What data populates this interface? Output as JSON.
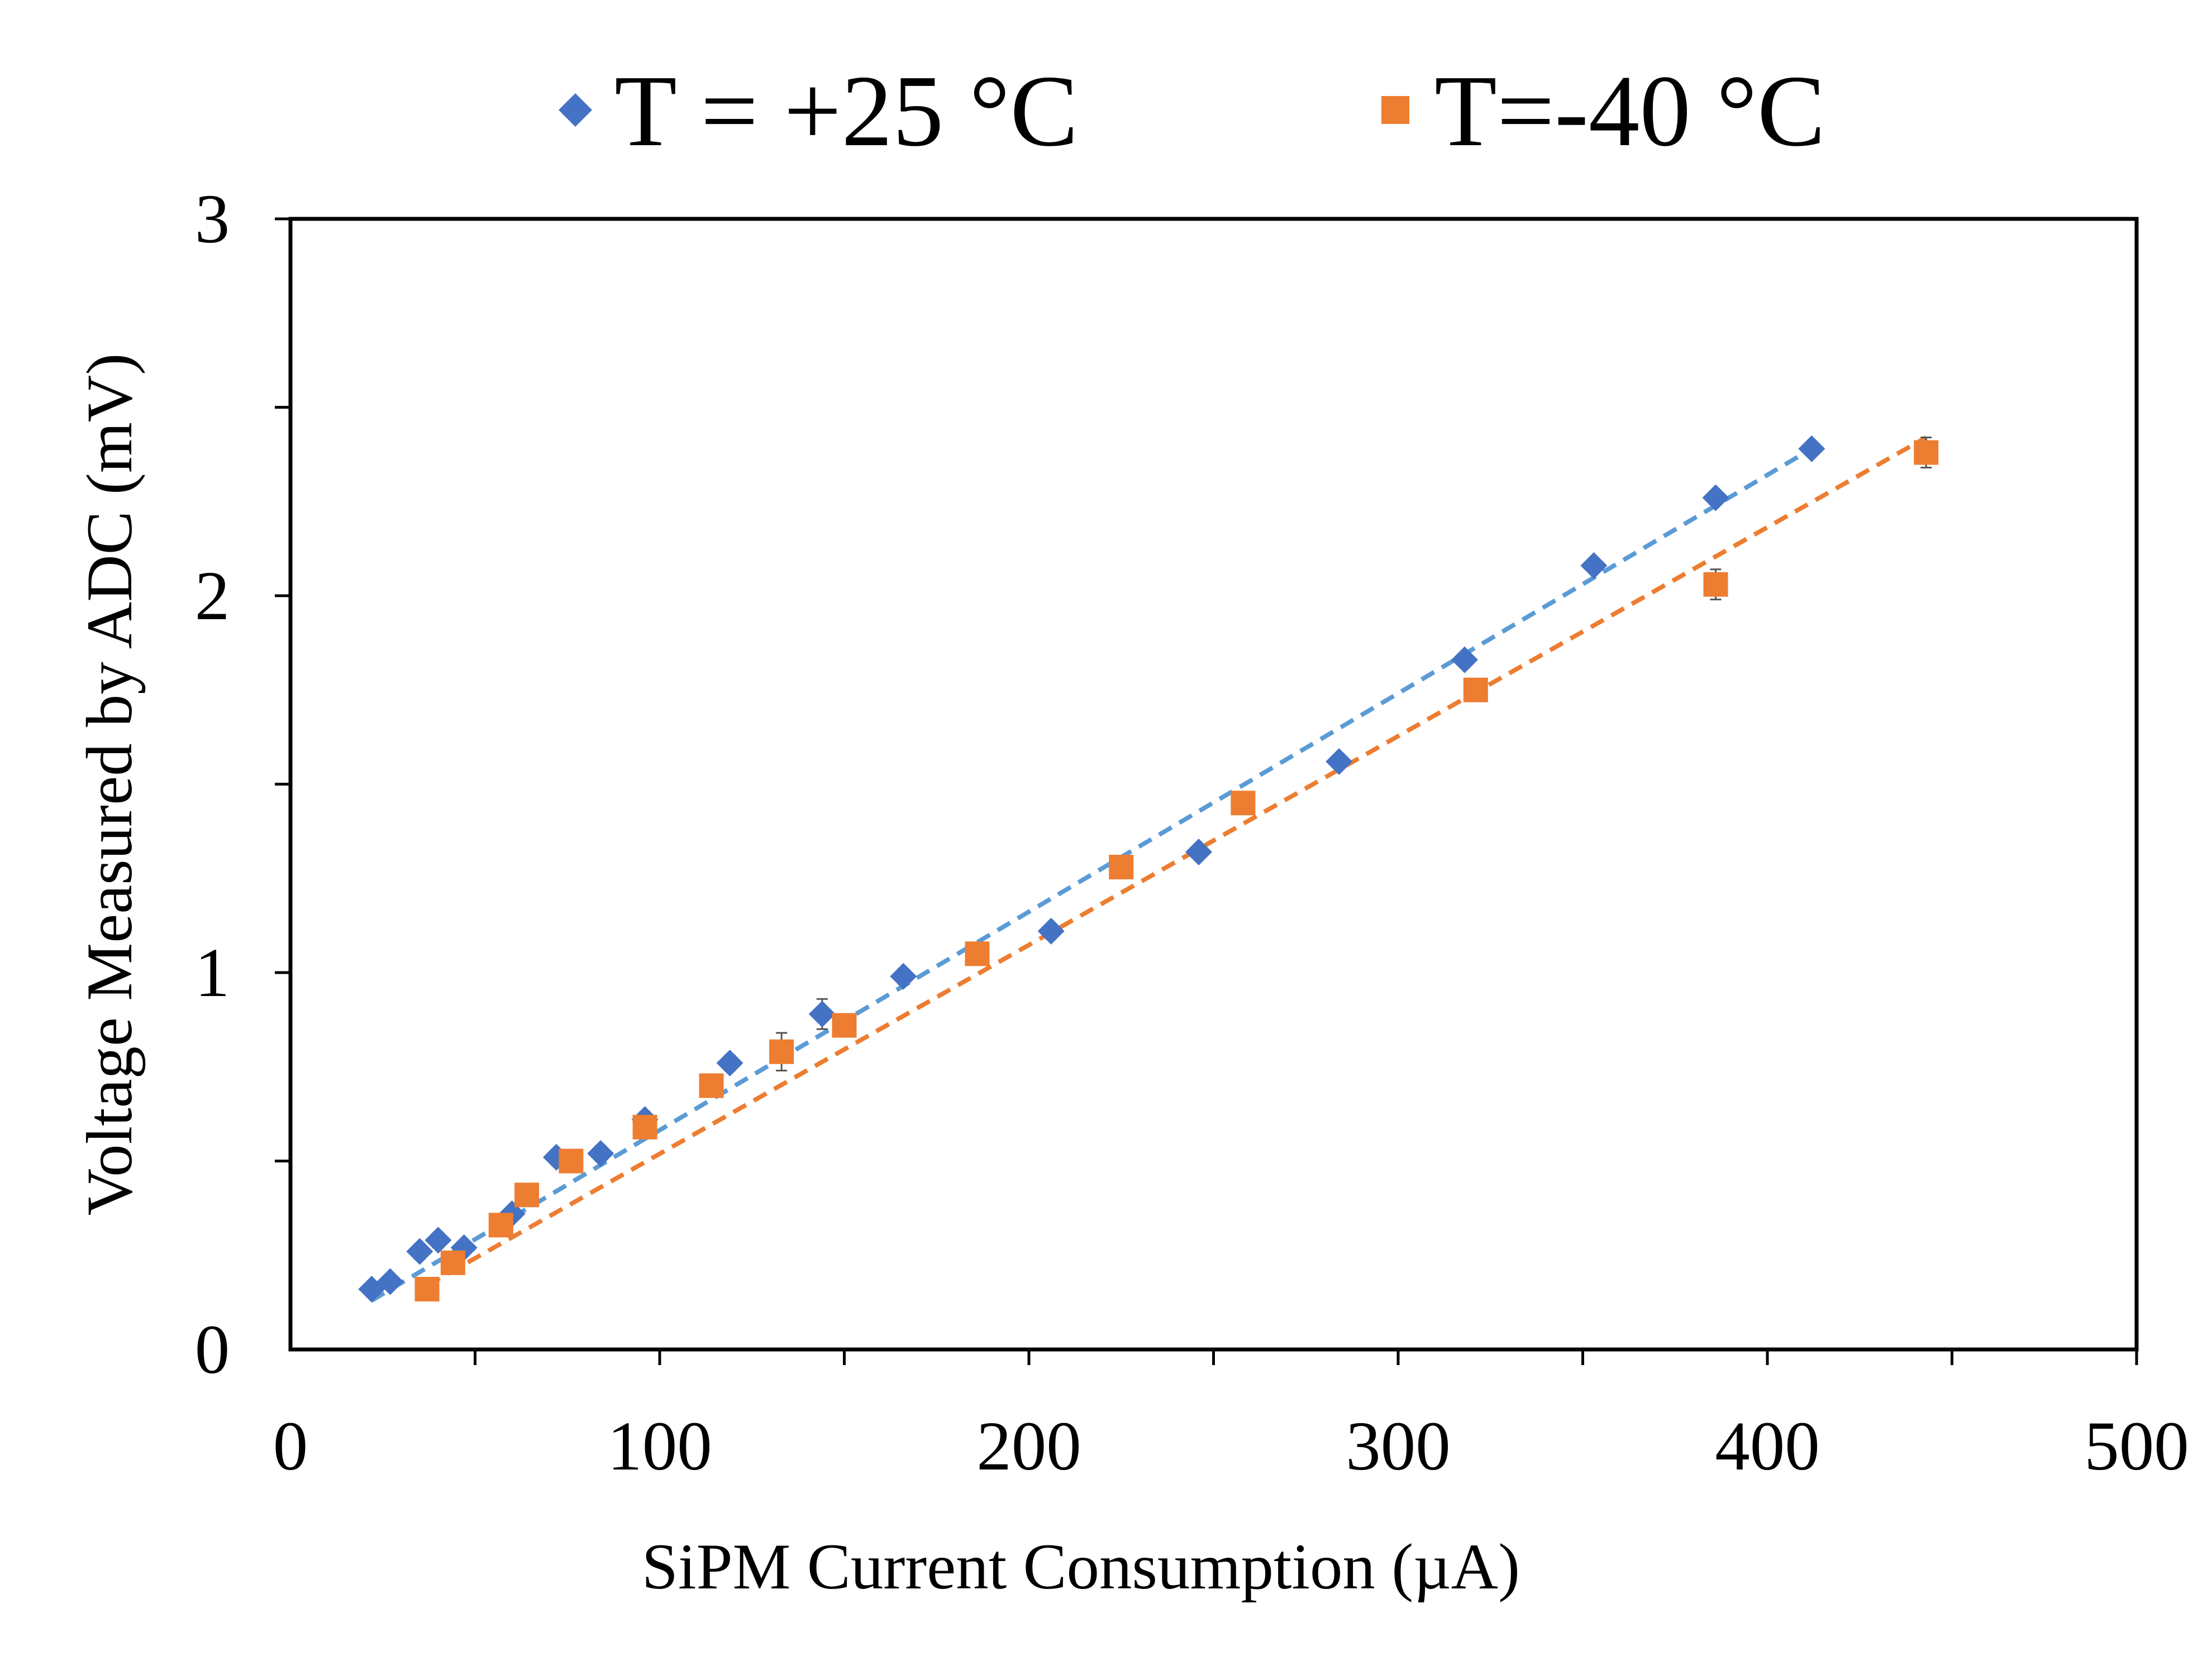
{
  "chart_data": {
    "type": "scatter",
    "title": "",
    "xlabel": "SiPM Current Consumption (µA)",
    "ylabel": "Voltage Measured by ADC (mV)",
    "xlim": [
      0,
      500
    ],
    "ylim": [
      0,
      3
    ],
    "x_ticks": [
      0,
      100,
      200,
      300,
      400,
      500
    ],
    "y_ticks": [
      0,
      1,
      2,
      3
    ],
    "y_minor_ticks": [
      0.5,
      1.5,
      2.5
    ],
    "x_minor_ticks": [
      50,
      150,
      250,
      350,
      450
    ],
    "grid": false,
    "legend_position": "top",
    "series": [
      {
        "name": "T = +25 °C",
        "marker": "diamond",
        "color": "#4472C4",
        "trend_color": "#5B9BD5",
        "trendline": "linear-dashed",
        "points": [
          {
            "x": 22,
            "y": 0.16,
            "err": 0.01
          },
          {
            "x": 27,
            "y": 0.18,
            "err": 0.01
          },
          {
            "x": 35,
            "y": 0.26,
            "err": 0.02
          },
          {
            "x": 40,
            "y": 0.29,
            "err": 0.02
          },
          {
            "x": 47,
            "y": 0.27,
            "err": 0.01
          },
          {
            "x": 60,
            "y": 0.36,
            "err": 0.01
          },
          {
            "x": 72,
            "y": 0.51,
            "err": 0.02
          },
          {
            "x": 84,
            "y": 0.52,
            "err": 0.02
          },
          {
            "x": 96,
            "y": 0.61,
            "err": 0.02
          },
          {
            "x": 119,
            "y": 0.76,
            "err": 0.02
          },
          {
            "x": 144,
            "y": 0.89,
            "err": 0.04
          },
          {
            "x": 166,
            "y": 0.99,
            "err": 0.02
          },
          {
            "x": 206,
            "y": 1.11,
            "err": 0.01
          },
          {
            "x": 246,
            "y": 1.32,
            "err": 0.01
          },
          {
            "x": 284,
            "y": 1.56,
            "err": 0.01
          },
          {
            "x": 318,
            "y": 1.83,
            "err": 0.01
          },
          {
            "x": 353,
            "y": 2.08,
            "err": 0.01
          },
          {
            "x": 386,
            "y": 2.26,
            "err": 0.01
          },
          {
            "x": 412,
            "y": 2.39,
            "err": 0.01
          }
        ],
        "trend_range": [
          22,
          412
        ],
        "trend_y": [
          0.13,
          2.39
        ]
      },
      {
        "name": "T=-40 °C",
        "marker": "square",
        "color": "#ED7D31",
        "trend_color": "#ED7D31",
        "trendline": "linear-dashed",
        "points": [
          {
            "x": 37,
            "y": 0.16,
            "err": 0.01
          },
          {
            "x": 44,
            "y": 0.23,
            "err": 0.01
          },
          {
            "x": 57,
            "y": 0.33,
            "err": 0.01
          },
          {
            "x": 64,
            "y": 0.41,
            "err": 0.01
          },
          {
            "x": 76,
            "y": 0.5,
            "err": 0.01
          },
          {
            "x": 96,
            "y": 0.59,
            "err": 0.01
          },
          {
            "x": 114,
            "y": 0.7,
            "err": 0.01
          },
          {
            "x": 133,
            "y": 0.79,
            "err": 0.05
          },
          {
            "x": 150,
            "y": 0.86,
            "err": 0.02
          },
          {
            "x": 186,
            "y": 1.05,
            "err": 0.01
          },
          {
            "x": 225,
            "y": 1.28,
            "err": 0.02
          },
          {
            "x": 258,
            "y": 1.45,
            "err": 0.03
          },
          {
            "x": 321,
            "y": 1.75,
            "err": 0.01
          },
          {
            "x": 386,
            "y": 2.03,
            "err": 0.04
          },
          {
            "x": 443,
            "y": 2.38,
            "err": 0.04
          }
        ],
        "trend_range": [
          37,
          443
        ],
        "trend_y": [
          0.17,
          2.42
        ]
      }
    ]
  }
}
